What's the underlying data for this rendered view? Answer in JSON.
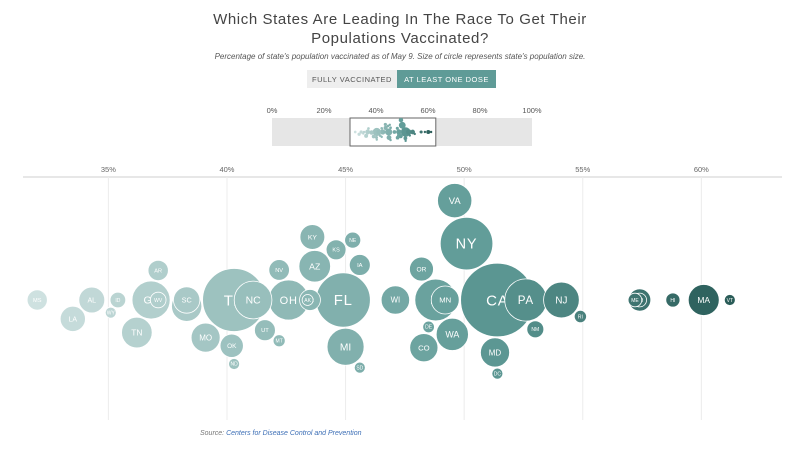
{
  "header": {
    "title_line1": "Which States Are Leading In The Race To Get Their",
    "title_line2": "Populations Vaccinated?",
    "subtitle": "Percentage of state's population vaccinated as of May 9. Size of circle represents state's population size."
  },
  "toggle": {
    "fully_label": "FULLY VACCINATED",
    "dose_label": "AT LEAST ONE DOSE",
    "selected": "AT LEAST ONE DOSE"
  },
  "source": {
    "prefix": "Source: ",
    "link_text": "Centers for Disease Control and Prevention"
  },
  "colors": {
    "low": "#d2e3e2",
    "mid": "#5f9b97",
    "high": "#1f4f4b",
    "toggle_active": "#5f9b97",
    "overview_band": "#e6e6e6"
  },
  "chart_data": [
    {
      "type": "scatter",
      "name": "overview",
      "x_ticks": [
        "0%",
        "20%",
        "40%",
        "60%",
        "80%",
        "100%"
      ],
      "xlim": [
        0,
        100
      ],
      "highlight_range": [
        30,
        63
      ]
    },
    {
      "type": "scatter",
      "title": "",
      "xlabel": "",
      "ylabel": "",
      "x_ticks": [
        "35%",
        "40%",
        "45%",
        "50%",
        "55%",
        "60%"
      ],
      "xlim": [
        31.4,
        63.4
      ],
      "grid": true,
      "size_encodes": "state population",
      "points": [
        {
          "state": "MS",
          "x": 32.0,
          "pop": 2.98
        },
        {
          "state": "LA",
          "x": 33.5,
          "pop": 4.65
        },
        {
          "state": "AL",
          "x": 34.3,
          "pop": 4.9
        },
        {
          "state": "WY",
          "x": 35.1,
          "pop": 0.58
        },
        {
          "state": "ID",
          "x": 35.4,
          "pop": 1.79
        },
        {
          "state": "TN",
          "x": 36.2,
          "pop": 6.83
        },
        {
          "state": "GA",
          "x": 36.8,
          "pop": 10.6
        },
        {
          "state": "WV",
          "x": 37.1,
          "pop": 1.79
        },
        {
          "state": "AR",
          "x": 37.1,
          "pop": 3.01
        },
        {
          "state": "IN",
          "x": 38.3,
          "pop": 6.7
        },
        {
          "state": "SC",
          "x": 38.3,
          "pop": 5.1
        },
        {
          "state": "MO",
          "x": 39.1,
          "pop": 6.14
        },
        {
          "state": "OK",
          "x": 40.2,
          "pop": 3.96
        },
        {
          "state": "ND",
          "x": 40.3,
          "pop": 0.76
        },
        {
          "state": "TX",
          "x": 40.3,
          "pop": 29.0
        },
        {
          "state": "NC",
          "x": 41.1,
          "pop": 10.4
        },
        {
          "state": "UT",
          "x": 41.6,
          "pop": 3.2
        },
        {
          "state": "NV",
          "x": 42.2,
          "pop": 3.1
        },
        {
          "state": "MT",
          "x": 42.2,
          "pop": 1.07
        },
        {
          "state": "OH",
          "x": 42.6,
          "pop": 11.7
        },
        {
          "state": "AK",
          "x": 43.4,
          "pop": 0.73
        },
        {
          "state": "AZ",
          "x": 43.7,
          "pop": 7.3
        },
        {
          "state": "KY",
          "x": 43.6,
          "pop": 4.5
        },
        {
          "state": "PR",
          "x": 43.5,
          "pop": 3.2
        },
        {
          "state": "KS",
          "x": 44.6,
          "pop": 2.9
        },
        {
          "state": "FL",
          "x": 44.9,
          "pop": 21.5
        },
        {
          "state": "MI",
          "x": 45.0,
          "pop": 10.0
        },
        {
          "state": "SD",
          "x": 45.6,
          "pop": 0.89
        },
        {
          "state": "IA",
          "x": 45.6,
          "pop": 3.2
        },
        {
          "state": "NE",
          "x": 45.3,
          "pop": 1.9
        },
        {
          "state": "WI",
          "x": 47.1,
          "pop": 5.9
        },
        {
          "state": "OR",
          "x": 48.2,
          "pop": 4.2
        },
        {
          "state": "CO",
          "x": 48.3,
          "pop": 5.8
        },
        {
          "state": "DE",
          "x": 48.5,
          "pop": 0.99
        },
        {
          "state": "IL",
          "x": 48.8,
          "pop": 12.7
        },
        {
          "state": "MN",
          "x": 49.2,
          "pop": 5.7
        },
        {
          "state": "WA",
          "x": 49.5,
          "pop": 7.6
        },
        {
          "state": "VA",
          "x": 49.6,
          "pop": 8.6
        },
        {
          "state": "NY",
          "x": 50.1,
          "pop": 20.2
        },
        {
          "state": "MD",
          "x": 51.3,
          "pop": 6.2
        },
        {
          "state": "DC",
          "x": 51.4,
          "pop": 0.69
        },
        {
          "state": "CA",
          "x": 51.4,
          "pop": 39.5
        },
        {
          "state": "PA",
          "x": 52.6,
          "pop": 13.0
        },
        {
          "state": "NM",
          "x": 53.0,
          "pop": 2.1
        },
        {
          "state": "NJ",
          "x": 54.1,
          "pop": 9.3
        },
        {
          "state": "RI",
          "x": 54.9,
          "pop": 1.1
        },
        {
          "state": "ME",
          "x": 57.2,
          "pop": 1.36
        },
        {
          "state": "CT",
          "x": 57.4,
          "pop": 3.6
        },
        {
          "state": "NH",
          "x": 57.4,
          "pop": 1.38
        },
        {
          "state": "HI",
          "x": 58.8,
          "pop": 1.46
        },
        {
          "state": "MA",
          "x": 60.1,
          "pop": 7.0
        },
        {
          "state": "VT",
          "x": 61.2,
          "pop": 0.64
        }
      ]
    }
  ]
}
